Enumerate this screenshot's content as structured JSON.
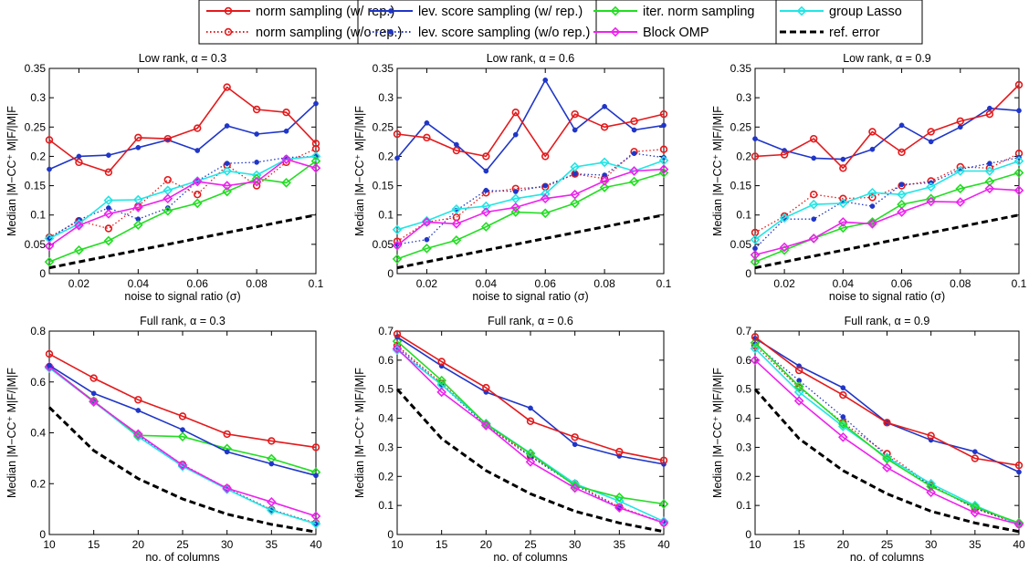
{
  "legend": {
    "entries": [
      {
        "id": "norm_rep",
        "label": "norm sampling (w/ rep.)",
        "color": "#e31a1c",
        "style": "solid",
        "marker": "circle"
      },
      {
        "id": "norm_norep",
        "label": "norm sampling (w/o rep.)",
        "color": "#e31a1c",
        "style": "dotted",
        "marker": "circle"
      },
      {
        "id": "lev_rep",
        "label": "lev. score sampling (w/ rep.)",
        "color": "#1f36c8",
        "style": "solid",
        "marker": "dot"
      },
      {
        "id": "lev_norep",
        "label": "lev. score sampling (w/o rep.)",
        "color": "#1f36c8",
        "style": "dotted",
        "marker": "dot"
      },
      {
        "id": "iter_norm",
        "label": "iter. norm sampling",
        "color": "#22dd22",
        "style": "solid",
        "marker": "diamond"
      },
      {
        "id": "bomp",
        "label": "Block OMP",
        "color": "#ee22ee",
        "style": "solid",
        "marker": "diamond"
      },
      {
        "id": "glasso",
        "label": "group Lasso",
        "color": "#22e5e5",
        "style": "solid",
        "marker": "diamond"
      },
      {
        "id": "ref",
        "label": "ref. error",
        "color": "#000000",
        "style": "dashed",
        "marker": "none"
      }
    ]
  },
  "chart_data": [
    {
      "type": "line",
      "title": "Low rank, α = 0.3",
      "xlabel": "noise to signal ratio (σ)",
      "ylabel": "Median |M−CC⁺ M|F/|M|F",
      "xlim": [
        0.01,
        0.1
      ],
      "ylim": [
        0,
        0.35
      ],
      "xticks": [
        0.02,
        0.04,
        0.06,
        0.08,
        0.1
      ],
      "xticklabels": [
        "0.02",
        "0.04",
        "0.06",
        "0.08",
        "0.1"
      ],
      "yticks": [
        0,
        0.05,
        0.1,
        0.15,
        0.2,
        0.25,
        0.3,
        0.35
      ],
      "yticklabels": [
        "0",
        "0.05",
        "0.1",
        "0.15",
        "0.2",
        "0.25",
        "0.3",
        "0.35"
      ],
      "x": [
        0.01,
        0.02,
        0.03,
        0.04,
        0.05,
        0.06,
        0.07,
        0.08,
        0.09,
        0.1
      ],
      "series": [
        {
          "id": "norm_rep",
          "values": [
            0.228,
            0.19,
            0.173,
            0.232,
            0.23,
            0.248,
            0.318,
            0.28,
            0.275,
            0.222
          ]
        },
        {
          "id": "lev_rep",
          "values": [
            0.178,
            0.2,
            0.202,
            0.215,
            0.228,
            0.21,
            0.252,
            0.238,
            0.243,
            0.29
          ]
        },
        {
          "id": "norm_norep",
          "values": [
            0.062,
            0.09,
            0.077,
            0.115,
            0.16,
            0.135,
            0.185,
            0.15,
            0.19,
            0.213
          ]
        },
        {
          "id": "lev_norep",
          "values": [
            0.06,
            0.092,
            0.112,
            0.093,
            0.112,
            0.158,
            0.188,
            0.19,
            0.198,
            0.2
          ]
        },
        {
          "id": "iter_norm",
          "values": [
            0.02,
            0.04,
            0.056,
            0.083,
            0.107,
            0.12,
            0.14,
            0.162,
            0.155,
            0.192
          ]
        },
        {
          "id": "bomp",
          "values": [
            0.047,
            0.082,
            0.102,
            0.113,
            0.128,
            0.157,
            0.15,
            0.157,
            0.195,
            0.18
          ]
        },
        {
          "id": "glasso",
          "values": [
            0.06,
            0.085,
            0.125,
            0.126,
            0.142,
            0.158,
            0.175,
            0.168,
            0.195,
            0.2
          ]
        },
        {
          "id": "ref",
          "values": [
            0.01,
            0.02,
            0.03,
            0.04,
            0.05,
            0.06,
            0.07,
            0.08,
            0.09,
            0.1
          ]
        }
      ]
    },
    {
      "type": "line",
      "title": "Low rank, α = 0.6",
      "xlabel": "noise to signal ratio (σ)",
      "ylabel": "Median |M−CC⁺ M|F/|M|F",
      "xlim": [
        0.01,
        0.1
      ],
      "ylim": [
        0,
        0.35
      ],
      "xticks": [
        0.02,
        0.04,
        0.06,
        0.08,
        0.1
      ],
      "xticklabels": [
        "0.02",
        "0.04",
        "0.06",
        "0.08",
        "0.1"
      ],
      "yticks": [
        0,
        0.05,
        0.1,
        0.15,
        0.2,
        0.25,
        0.3,
        0.35
      ],
      "yticklabels": [
        "0",
        "0.05",
        "0.1",
        "0.15",
        "0.2",
        "0.25",
        "0.3",
        "0.35"
      ],
      "x": [
        0.01,
        0.02,
        0.03,
        0.04,
        0.05,
        0.06,
        0.07,
        0.08,
        0.09,
        0.1
      ],
      "series": [
        {
          "id": "norm_rep",
          "values": [
            0.238,
            0.232,
            0.21,
            0.2,
            0.275,
            0.2,
            0.272,
            0.25,
            0.26,
            0.272
          ]
        },
        {
          "id": "lev_rep",
          "values": [
            0.197,
            0.257,
            0.22,
            0.175,
            0.237,
            0.33,
            0.245,
            0.285,
            0.245,
            0.253
          ]
        },
        {
          "id": "norm_norep",
          "values": [
            0.055,
            0.088,
            0.096,
            0.138,
            0.145,
            0.148,
            0.17,
            0.162,
            0.208,
            0.212
          ]
        },
        {
          "id": "lev_norep",
          "values": [
            0.05,
            0.058,
            0.108,
            0.142,
            0.14,
            0.15,
            0.17,
            0.168,
            0.205,
            0.198
          ]
        },
        {
          "id": "iter_norm",
          "values": [
            0.025,
            0.043,
            0.057,
            0.08,
            0.105,
            0.103,
            0.12,
            0.147,
            0.157,
            0.172
          ]
        },
        {
          "id": "bomp",
          "values": [
            0.048,
            0.088,
            0.085,
            0.105,
            0.113,
            0.128,
            0.135,
            0.158,
            0.175,
            0.178
          ]
        },
        {
          "id": "glasso",
          "values": [
            0.075,
            0.09,
            0.11,
            0.115,
            0.128,
            0.136,
            0.182,
            0.19,
            0.175,
            0.193
          ]
        },
        {
          "id": "ref",
          "values": [
            0.01,
            0.02,
            0.03,
            0.04,
            0.05,
            0.06,
            0.07,
            0.08,
            0.09,
            0.1
          ]
        }
      ]
    },
    {
      "type": "line",
      "title": "Low rank, α = 0.9",
      "xlabel": "noise to signal ratio (σ)",
      "ylabel": "Median |M−CC⁺ M|F/|M|F",
      "xlim": [
        0.01,
        0.1
      ],
      "ylim": [
        0,
        0.35
      ],
      "xticks": [
        0.02,
        0.04,
        0.06,
        0.08,
        0.1
      ],
      "xticklabels": [
        "0.02",
        "0.04",
        "0.06",
        "0.08",
        "0.1"
      ],
      "yticks": [
        0,
        0.05,
        0.1,
        0.15,
        0.2,
        0.25,
        0.3,
        0.35
      ],
      "yticklabels": [
        "0",
        "0.05",
        "0.1",
        "0.15",
        "0.2",
        "0.25",
        "0.3",
        "0.35"
      ],
      "x": [
        0.01,
        0.02,
        0.03,
        0.04,
        0.05,
        0.06,
        0.07,
        0.08,
        0.09,
        0.1
      ],
      "series": [
        {
          "id": "norm_rep",
          "values": [
            0.2,
            0.203,
            0.23,
            0.18,
            0.242,
            0.207,
            0.242,
            0.26,
            0.272,
            0.322
          ]
        },
        {
          "id": "lev_rep",
          "values": [
            0.23,
            0.21,
            0.197,
            0.195,
            0.212,
            0.253,
            0.225,
            0.25,
            0.282,
            0.278
          ]
        },
        {
          "id": "norm_norep",
          "values": [
            0.07,
            0.098,
            0.135,
            0.128,
            0.13,
            0.15,
            0.158,
            0.182,
            0.18,
            0.205
          ]
        },
        {
          "id": "lev_norep",
          "values": [
            0.043,
            0.093,
            0.093,
            0.123,
            0.115,
            0.152,
            0.155,
            0.178,
            0.188,
            0.198
          ]
        },
        {
          "id": "iter_norm",
          "values": [
            0.02,
            0.04,
            0.06,
            0.078,
            0.088,
            0.118,
            0.128,
            0.145,
            0.157,
            0.172
          ]
        },
        {
          "id": "bomp",
          "values": [
            0.032,
            0.045,
            0.06,
            0.088,
            0.085,
            0.105,
            0.123,
            0.122,
            0.145,
            0.142
          ]
        },
        {
          "id": "glasso",
          "values": [
            0.058,
            0.095,
            0.118,
            0.12,
            0.138,
            0.135,
            0.148,
            0.175,
            0.175,
            0.192
          ]
        },
        {
          "id": "ref",
          "values": [
            0.01,
            0.02,
            0.03,
            0.04,
            0.05,
            0.06,
            0.07,
            0.08,
            0.09,
            0.1
          ]
        }
      ]
    },
    {
      "type": "line",
      "title": "Full rank, α = 0.3",
      "xlabel": "no. of columns",
      "ylabel": "Median |M−CC⁺ M|F/|M|F",
      "xlim": [
        10,
        40
      ],
      "ylim": [
        0,
        0.8
      ],
      "xticks": [
        10,
        15,
        20,
        25,
        30,
        35,
        40
      ],
      "xticklabels": [
        "10",
        "15",
        "20",
        "25",
        "30",
        "35",
        "40"
      ],
      "yticks": [
        0,
        0.2,
        0.4,
        0.6,
        0.8
      ],
      "yticklabels": [
        "0",
        "0.2",
        "0.4",
        "0.6",
        "0.8"
      ],
      "x": [
        10,
        15,
        20,
        25,
        30,
        35,
        40
      ],
      "series": [
        {
          "id": "norm_rep",
          "values": [
            0.71,
            0.615,
            0.53,
            0.465,
            0.395,
            0.368,
            0.343
          ]
        },
        {
          "id": "lev_rep",
          "values": [
            0.665,
            0.555,
            0.488,
            0.412,
            0.325,
            0.278,
            0.232
          ]
        },
        {
          "id": "norm_norep",
          "values": [
            0.66,
            0.525,
            0.392,
            0.275,
            0.182,
            0.098,
            0.045
          ]
        },
        {
          "id": "lev_norep",
          "values": [
            0.658,
            0.525,
            0.39,
            0.272,
            0.18,
            0.097,
            0.043
          ]
        },
        {
          "id": "iter_norm",
          "values": [
            0.66,
            0.525,
            0.39,
            0.385,
            0.338,
            0.298,
            0.245
          ]
        },
        {
          "id": "bomp",
          "values": [
            0.66,
            0.522,
            0.395,
            0.273,
            0.182,
            0.128,
            0.072
          ]
        },
        {
          "id": "glasso",
          "values": [
            0.655,
            0.522,
            0.385,
            0.268,
            0.178,
            0.095,
            0.042
          ]
        },
        {
          "id": "ref",
          "values": [
            0.5,
            0.33,
            0.22,
            0.14,
            0.08,
            0.04,
            0.01
          ]
        }
      ]
    },
    {
      "type": "line",
      "title": "Full rank, α = 0.6",
      "xlabel": "no. of columns",
      "ylabel": "Median |M−CC⁺ M|F/|M|F",
      "xlim": [
        10,
        40
      ],
      "ylim": [
        0,
        0.7
      ],
      "xticks": [
        10,
        15,
        20,
        25,
        30,
        35,
        40
      ],
      "xticklabels": [
        "10",
        "15",
        "20",
        "25",
        "30",
        "35",
        "40"
      ],
      "yticks": [
        0,
        0.1,
        0.2,
        0.3,
        0.4,
        0.5,
        0.6,
        0.7
      ],
      "yticklabels": [
        "0",
        "0.1",
        "0.2",
        "0.3",
        "0.4",
        "0.5",
        "0.6",
        "0.7"
      ],
      "x": [
        10,
        15,
        20,
        25,
        30,
        35,
        40
      ],
      "series": [
        {
          "id": "norm_rep",
          "values": [
            0.69,
            0.595,
            0.505,
            0.39,
            0.335,
            0.285,
            0.255
          ]
        },
        {
          "id": "lev_rep",
          "values": [
            0.68,
            0.58,
            0.49,
            0.435,
            0.31,
            0.27,
            0.242
          ]
        },
        {
          "id": "norm_norep",
          "values": [
            0.65,
            0.52,
            0.38,
            0.27,
            0.175,
            0.095,
            0.04
          ]
        },
        {
          "id": "lev_norep",
          "values": [
            0.645,
            0.515,
            0.375,
            0.268,
            0.17,
            0.092,
            0.042
          ]
        },
        {
          "id": "iter_norm",
          "values": [
            0.665,
            0.53,
            0.38,
            0.278,
            0.168,
            0.128,
            0.105
          ]
        },
        {
          "id": "bomp",
          "values": [
            0.64,
            0.49,
            0.375,
            0.25,
            0.16,
            0.092,
            0.04
          ]
        },
        {
          "id": "glasso",
          "values": [
            0.635,
            0.515,
            0.382,
            0.28,
            0.175,
            0.115,
            0.045
          ]
        },
        {
          "id": "ref",
          "values": [
            0.5,
            0.33,
            0.22,
            0.14,
            0.08,
            0.04,
            0.01
          ]
        }
      ]
    },
    {
      "type": "line",
      "title": "Full rank, α = 0.9",
      "xlabel": "no. of columns",
      "ylabel": "Median |M−CC⁺ M|F/|M|F",
      "xlim": [
        10,
        40
      ],
      "ylim": [
        0,
        0.7
      ],
      "xticks": [
        10,
        15,
        20,
        25,
        30,
        35,
        40
      ],
      "xticklabels": [
        "10",
        "15",
        "20",
        "25",
        "30",
        "35",
        "40"
      ],
      "yticks": [
        0,
        0.1,
        0.2,
        0.3,
        0.4,
        0.5,
        0.6,
        0.7
      ],
      "yticklabels": [
        "0",
        "0.1",
        "0.2",
        "0.3",
        "0.4",
        "0.5",
        "0.6",
        "0.7"
      ],
      "x": [
        10,
        15,
        20,
        25,
        30,
        35,
        40
      ],
      "series": [
        {
          "id": "norm_rep",
          "values": [
            0.68,
            0.565,
            0.48,
            0.385,
            0.34,
            0.262,
            0.238
          ]
        },
        {
          "id": "lev_rep",
          "values": [
            0.675,
            0.58,
            0.505,
            0.385,
            0.325,
            0.285,
            0.215
          ]
        },
        {
          "id": "norm_norep",
          "values": [
            0.65,
            0.505,
            0.385,
            0.278,
            0.17,
            0.09,
            0.035
          ]
        },
        {
          "id": "lev_norep",
          "values": [
            0.655,
            0.53,
            0.405,
            0.27,
            0.168,
            0.09,
            0.038
          ]
        },
        {
          "id": "iter_norm",
          "values": [
            0.66,
            0.51,
            0.38,
            0.26,
            0.165,
            0.095,
            0.04
          ]
        },
        {
          "id": "bomp",
          "values": [
            0.6,
            0.46,
            0.335,
            0.23,
            0.145,
            0.075,
            0.035
          ]
        },
        {
          "id": "glasso",
          "values": [
            0.64,
            0.49,
            0.372,
            0.265,
            0.175,
            0.1,
            0.035
          ]
        },
        {
          "id": "ref",
          "values": [
            0.5,
            0.33,
            0.22,
            0.14,
            0.08,
            0.04,
            0.01
          ]
        }
      ]
    }
  ]
}
